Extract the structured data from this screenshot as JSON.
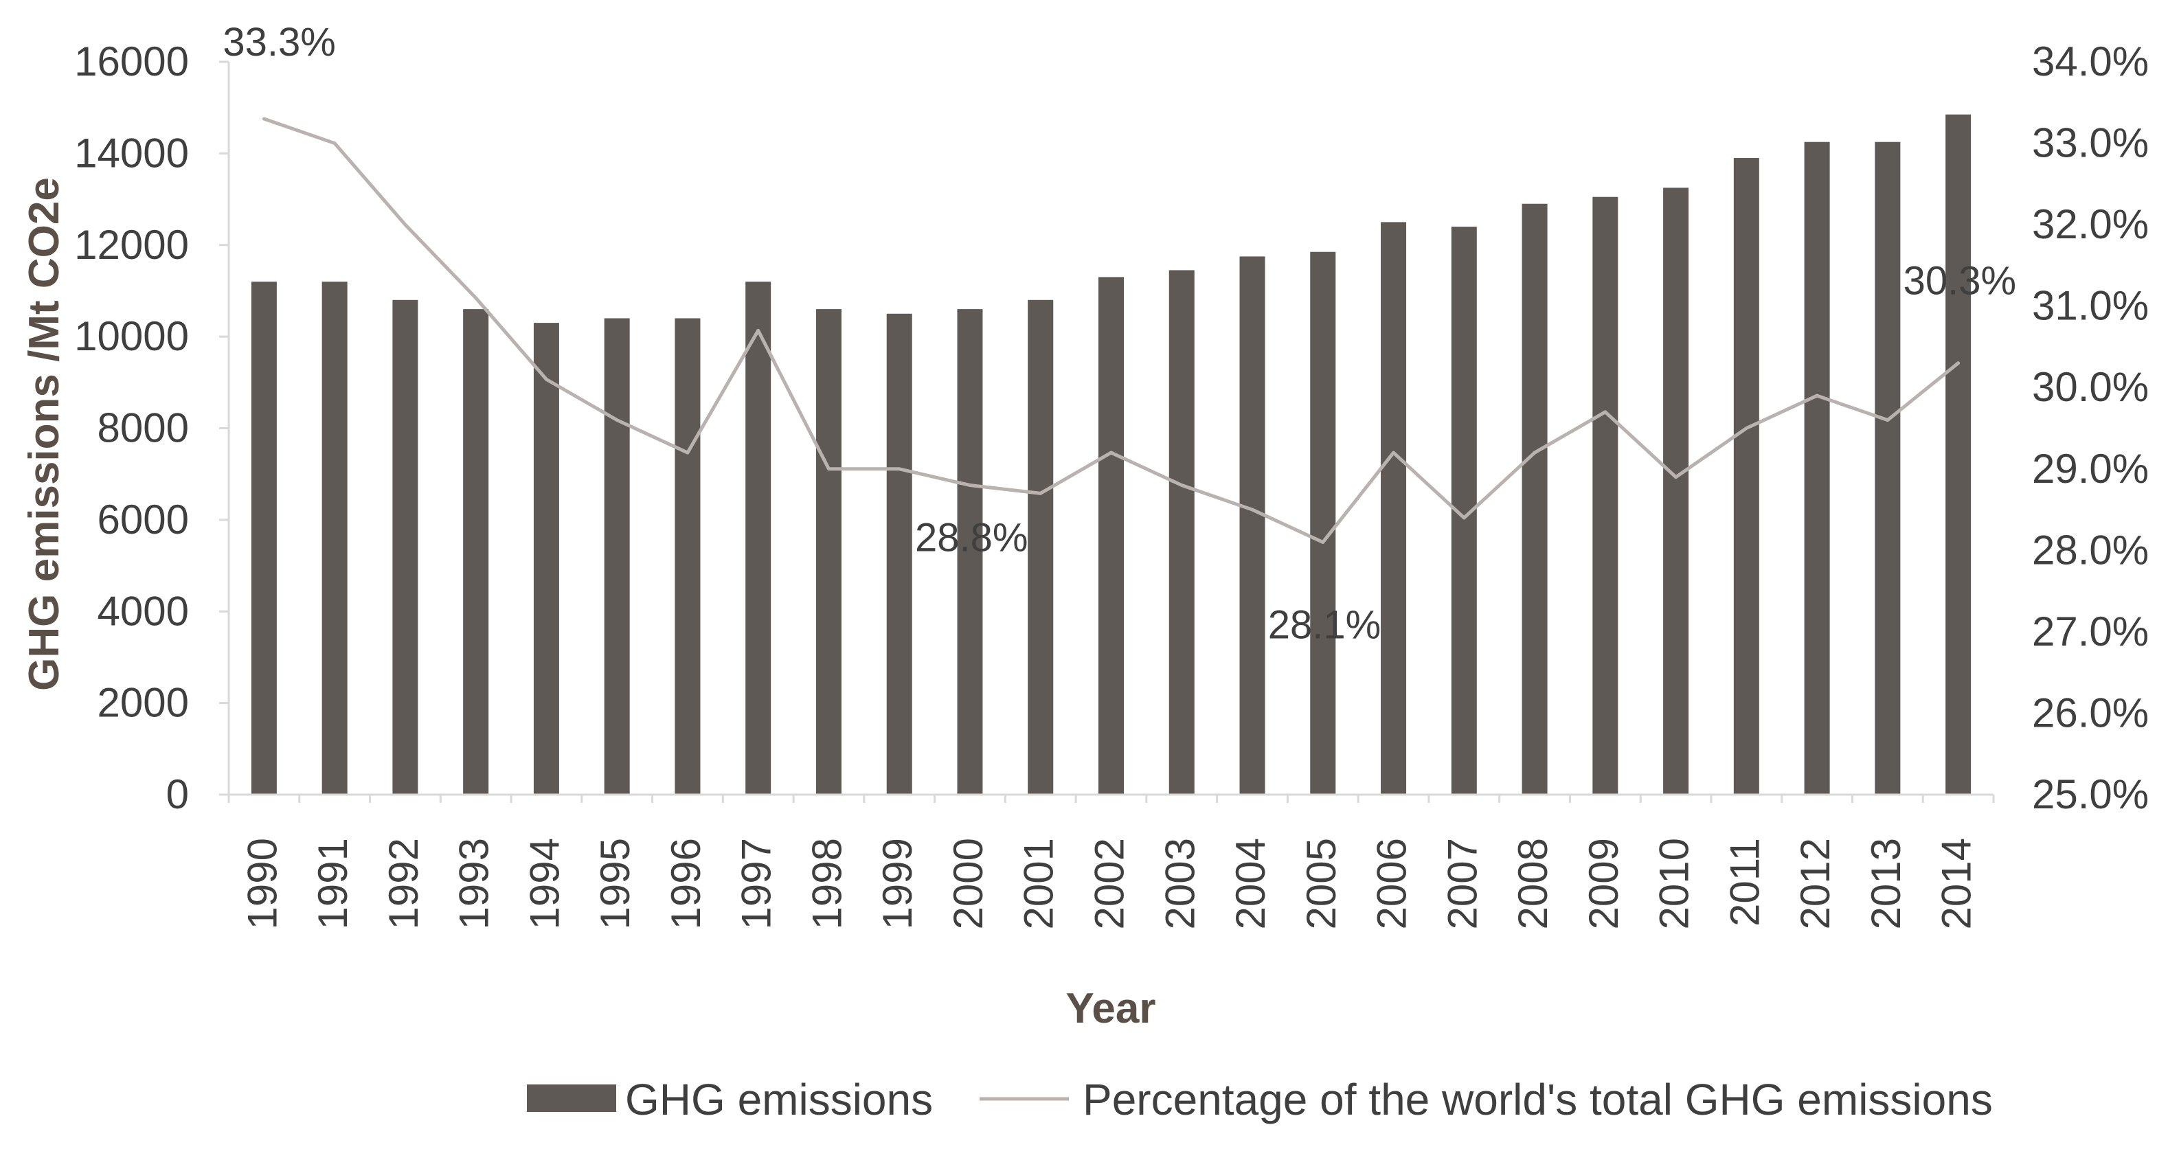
{
  "chart_data": {
    "type": "bar",
    "title": "",
    "xlabel": "Year",
    "ylabel": "GHG emissions /Mt  CO2e",
    "ylim": [
      0,
      16000
    ],
    "y2lim": [
      25.0,
      34.0
    ],
    "yticks": [
      "0",
      "2000",
      "4000",
      "6000",
      "8000",
      "10000",
      "12000",
      "14000",
      "16000"
    ],
    "y2ticks": [
      "25.0%",
      "26.0%",
      "27.0%",
      "28.0%",
      "29.0%",
      "30.0%",
      "31.0%",
      "32.0%",
      "33.0%",
      "34.0%"
    ],
    "categories": [
      "1990",
      "1991",
      "1992",
      "1993",
      "1994",
      "1995",
      "1996",
      "1997",
      "1998",
      "1999",
      "2000",
      "2001",
      "2002",
      "2003",
      "2004",
      "2005",
      "2006",
      "2007",
      "2008",
      "2009",
      "2010",
      "2011",
      "2012",
      "2013",
      "2014"
    ],
    "series": [
      {
        "name": "GHG emissions",
        "type": "bar",
        "axis": "left",
        "color": "#5e5954",
        "values": [
          11200,
          11200,
          10800,
          10600,
          10300,
          10400,
          10400,
          11200,
          10600,
          10500,
          10600,
          10800,
          11300,
          11450,
          11750,
          11850,
          12500,
          12400,
          12900,
          13050,
          13250,
          13900,
          14250,
          14250,
          14850
        ]
      },
      {
        "name": "Percentage of the world's total GHG emissions",
        "type": "line",
        "axis": "right",
        "color": "#b9b2ae",
        "values": [
          33.3,
          33.0,
          32.0,
          31.1,
          30.1,
          29.6,
          29.2,
          30.7,
          29.0,
          29.0,
          28.8,
          28.7,
          29.2,
          28.8,
          28.5,
          28.1,
          29.2,
          28.4,
          29.2,
          29.7,
          28.9,
          29.5,
          29.9,
          29.6,
          30.3
        ]
      }
    ],
    "annotations": [
      {
        "label": "33.3%",
        "index": 0
      },
      {
        "label": "28.8%",
        "index": 10
      },
      {
        "label": "28.1%",
        "index": 15
      },
      {
        "label": "30.3%",
        "index": 24
      }
    ],
    "legend": {
      "placement": "bottom",
      "items": [
        "GHG emissions",
        "Percentage of the world's total GHG emissions"
      ]
    }
  }
}
